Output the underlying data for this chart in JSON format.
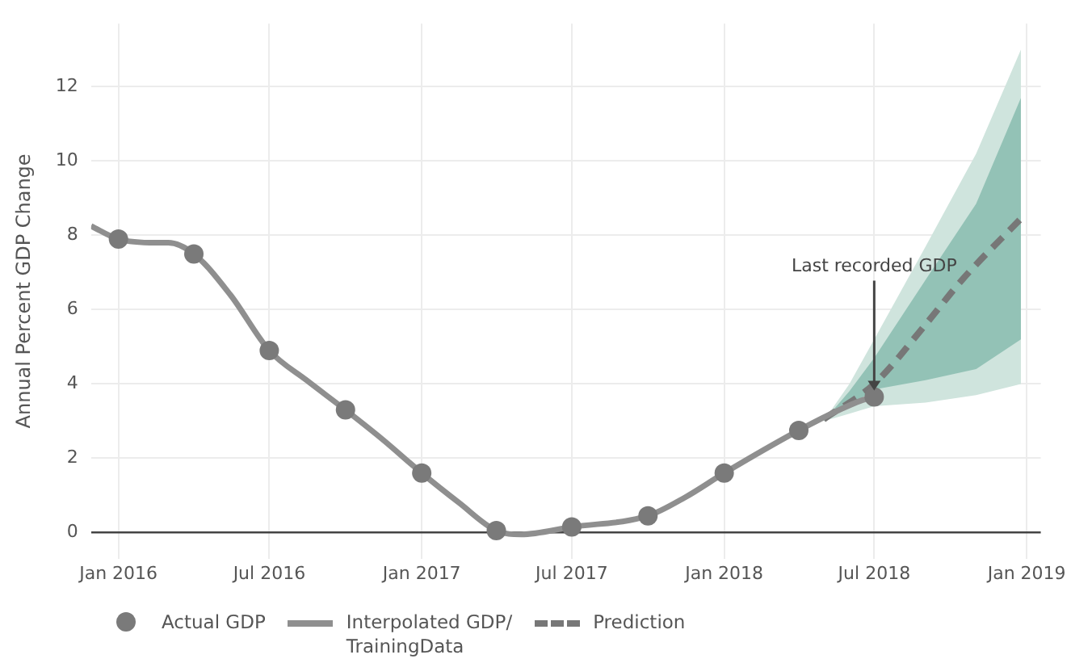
{
  "chart_data": {
    "type": "line",
    "ylabel": "Annual Percent GDP Change",
    "xlim": [
      "2015-11-29",
      "2019-01-18"
    ],
    "xticks": [
      {
        "value": "2016-01",
        "label": "Jan 2016"
      },
      {
        "value": "2016-07",
        "label": "Jul 2016"
      },
      {
        "value": "2017-01",
        "label": "Jan 2017"
      },
      {
        "value": "2017-07",
        "label": "Jul 2017"
      },
      {
        "value": "2018-01",
        "label": "Jan 2018"
      },
      {
        "value": "2018-07",
        "label": "Jul 2018"
      },
      {
        "value": "2019-01",
        "label": "Jan 2019"
      }
    ],
    "ylim": [
      -0.7,
      13.7
    ],
    "yticks": [
      0,
      2,
      4,
      6,
      8,
      10,
      12
    ],
    "grid": true,
    "legend": "bottom left",
    "annotations": [
      {
        "text": "Last recorded GDP",
        "x": "2018-07-01",
        "y": 3.65
      }
    ],
    "series": [
      {
        "type": "line",
        "color": "#cfe4dd",
        "x": [
          "2018-05-01",
          "2018-06-01",
          "2018-07-01",
          "2018-09-01",
          "2018-11-01",
          "2018-12-25"
        ],
        "values": [
          null,
          null,
          null,
          null,
          null,
          null
        ],
        "lower": [
          3.0,
          3.2,
          3.4,
          3.5,
          3.7,
          4.0
        ],
        "upper": [
          3.0,
          4.0,
          5.2,
          7.7,
          10.2,
          13.0
        ]
      },
      {
        "type": "line",
        "color": "#93c2b6",
        "x": [
          "2018-05-01",
          "2018-06-01",
          "2018-07-01",
          "2018-09-01",
          "2018-11-01",
          "2018-12-25"
        ],
        "values": [
          null,
          null,
          null,
          null,
          null,
          null
        ],
        "lower": [
          3.0,
          3.4,
          3.85,
          4.1,
          4.4,
          5.2
        ],
        "upper": [
          3.0,
          3.8,
          4.7,
          6.8,
          8.85,
          11.7
        ]
      },
      {
        "name": "Actual GDP",
        "type": "scatter",
        "color": "#7a7a7a",
        "marker": "circle",
        "x": [
          "2016-01-01",
          "2016-04-01",
          "2016-07-01",
          "2016-10-01",
          "2017-01-01",
          "2017-04-01",
          "2017-07-01",
          "2017-10-01",
          "2018-01-01",
          "2018-04-01",
          "2018-07-01"
        ],
        "values": [
          7.9,
          7.5,
          4.9,
          3.3,
          1.6,
          0.05,
          0.15,
          0.45,
          1.6,
          2.75,
          3.65
        ]
      },
      {
        "name": "Interpolated GDP/\nTrainingData",
        "type": "line",
        "color": "#8f8f8f",
        "marker": "none",
        "x": [
          "2015-11-29",
          "2016-01-01",
          "2016-02-15",
          "2016-03-01",
          "2016-04-01",
          "2016-05-15",
          "2016-07-01",
          "2016-08-15",
          "2016-10-01",
          "2016-11-15",
          "2017-01-01",
          "2017-02-15",
          "2017-04-01",
          "2017-05-01",
          "2017-07-01",
          "2017-10-01",
          "2017-11-15",
          "2018-01-01",
          "2018-04-01",
          "2018-05-15",
          "2018-06-15",
          "2018-07-01"
        ],
        "values": [
          8.25,
          7.9,
          7.8,
          7.8,
          7.5,
          6.4,
          4.9,
          4.1,
          3.3,
          2.5,
          1.6,
          0.8,
          0.05,
          -0.05,
          0.15,
          0.45,
          0.95,
          1.6,
          2.75,
          3.25,
          3.55,
          3.65
        ]
      },
      {
        "name": "Prediction",
        "type": "line",
        "color": "#777777",
        "marker": "none",
        "line_style": "dashed",
        "x": [
          "2018-05-01",
          "2018-07-01",
          "2018-09-01",
          "2018-10-15",
          "2018-12-25"
        ],
        "values": [
          3.05,
          4.0,
          5.6,
          6.8,
          8.45
        ]
      }
    ]
  }
}
